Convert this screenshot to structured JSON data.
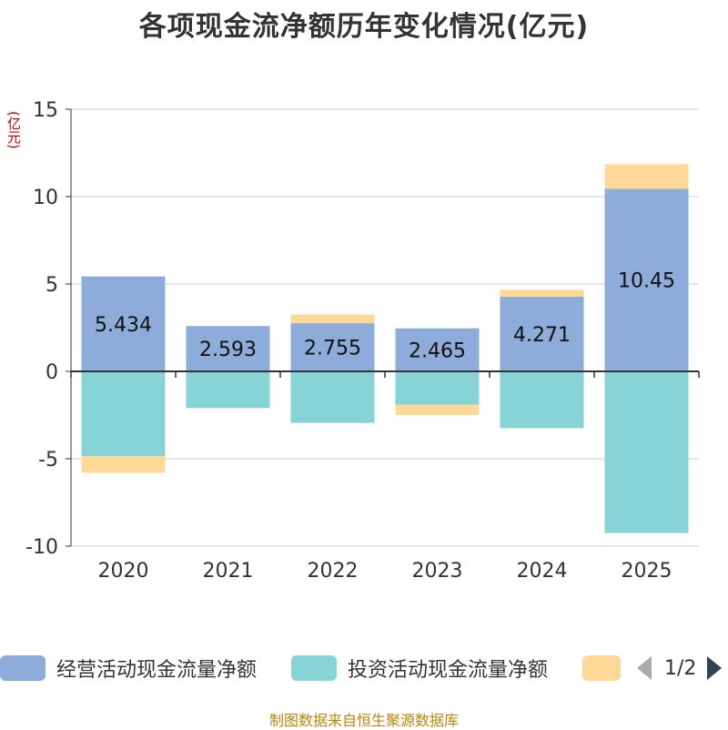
{
  "chart_data": {
    "type": "bar",
    "stacked": true,
    "title": "各项现金流净额历年变化情况(亿元)",
    "ylabel": "(亿元)",
    "categories": [
      "2020",
      "2021",
      "2022",
      "2023",
      "2024",
      "2025"
    ],
    "ylim": [
      -10,
      15
    ],
    "yticks": [
      15,
      10,
      5,
      0,
      -5,
      -10
    ],
    "series": [
      {
        "name": "经营活动现金流量净额",
        "color": "#8eacd9",
        "values": [
          5.434,
          2.593,
          2.755,
          2.465,
          4.271,
          10.45
        ],
        "labels": [
          "5.434",
          "2.593",
          "2.755",
          "2.465",
          "4.271",
          "10.45"
        ]
      },
      {
        "name": "投资活动现金流量净额",
        "color": "#86d4d6",
        "values": [
          -4.85,
          -2.1,
          -2.95,
          -1.9,
          -3.25,
          -9.25
        ]
      },
      {
        "name": "",
        "color": "#fdd896",
        "values": [
          -0.95,
          0,
          0.5,
          -0.6,
          0.4,
          1.4
        ]
      }
    ]
  },
  "legend": {
    "items": [
      {
        "label": "经营活动现金流量净额",
        "color": "#8eacd9"
      },
      {
        "label": "投资活动现金流量净额",
        "color": "#86d4d6"
      },
      {
        "label": "",
        "color": "#fdd896"
      }
    ],
    "page": "1/2"
  },
  "footer": "制图数据来自恒生聚源数据库"
}
